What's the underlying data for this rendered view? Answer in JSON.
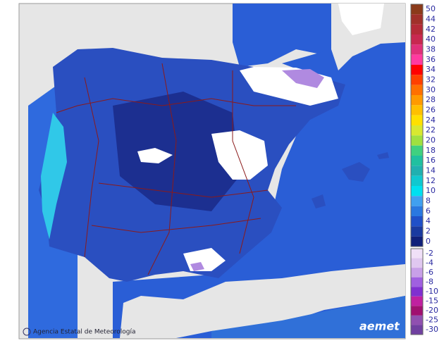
{
  "legend": {
    "positive": [
      {
        "label": "50",
        "color": "#8b3a1a"
      },
      {
        "label": "44",
        "color": "#a0302a"
      },
      {
        "label": "42",
        "color": "#b42a38"
      },
      {
        "label": "40",
        "color": "#c82850"
      },
      {
        "label": "38",
        "color": "#e0307a"
      },
      {
        "label": "36",
        "color": "#ff3aa0"
      },
      {
        "label": "34",
        "color": "#ff0000"
      },
      {
        "label": "32",
        "color": "#ff4000"
      },
      {
        "label": "30",
        "color": "#ff7000"
      },
      {
        "label": "28",
        "color": "#ff9a00"
      },
      {
        "label": "26",
        "color": "#ffc000"
      },
      {
        "label": "24",
        "color": "#ffe000"
      },
      {
        "label": "22",
        "color": "#d8e830"
      },
      {
        "label": "20",
        "color": "#a0e040"
      },
      {
        "label": "18",
        "color": "#40d080"
      },
      {
        "label": "16",
        "color": "#20c0a0"
      },
      {
        "label": "14",
        "color": "#20b0b0"
      },
      {
        "label": "12",
        "color": "#10c8d0"
      },
      {
        "label": "10",
        "color": "#00e0f0"
      },
      {
        "label": "8",
        "color": "#40a0f0"
      },
      {
        "label": "6",
        "color": "#2a78e0"
      },
      {
        "label": "4",
        "color": "#2050c8"
      },
      {
        "label": "2",
        "color": "#1a3aa0"
      },
      {
        "label": "0",
        "color": "#10207a"
      }
    ],
    "negative": [
      {
        "label": "-2",
        "color": "#f0e0f8"
      },
      {
        "label": "-4",
        "color": "#e0c8f0"
      },
      {
        "label": "-6",
        "color": "#c8a0e8"
      },
      {
        "label": "-8",
        "color": "#a060e0"
      },
      {
        "label": "-10",
        "color": "#8030d0"
      },
      {
        "label": "-15",
        "color": "#c020a0"
      },
      {
        "label": "-20",
        "color": "#a01070"
      },
      {
        "label": "-25",
        "color": "#9050b0"
      },
      {
        "label": "-30",
        "color": "#7040a0"
      }
    ]
  },
  "credit": "Agencia Estatal de Meteorología",
  "logo": "aemet"
}
